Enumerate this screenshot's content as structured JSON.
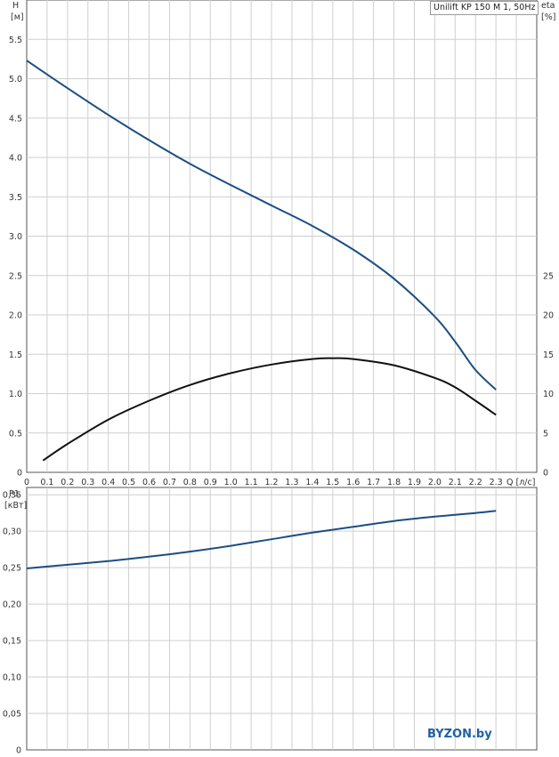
{
  "legend_text": "Unilift KP 150 M 1, 50Hz",
  "watermark_text": "BYZON.by",
  "colors": {
    "head": "#1c4e80",
    "eta": "#111111",
    "power": "#1c4e80",
    "grid": "#cfcfcf",
    "axis": "#555555"
  },
  "chart_data": [
    {
      "type": "line",
      "title": "",
      "left_axis": {
        "label_top": "H",
        "label_unit": "[м]",
        "range": [
          0,
          6.0
        ],
        "ticks": [
          "0",
          "0.5",
          "1.0",
          "1.5",
          "2.0",
          "2.5",
          "3.0",
          "3.5",
          "4.0",
          "4.5",
          "5.0",
          "5.5"
        ]
      },
      "right_axis": {
        "label_top": "eta",
        "label_unit": "[%]",
        "range": [
          0,
          60
        ],
        "ticks": [
          "0",
          "5",
          "10",
          "15",
          "20",
          "25"
        ]
      },
      "x_axis": {
        "label": "Q [л/с]",
        "range": [
          0,
          2.5
        ],
        "ticks": [
          "0",
          "0.1",
          "0.2",
          "0.3",
          "0.4",
          "0.5",
          "0.6",
          "0.7",
          "0.8",
          "0.9",
          "1.0",
          "1.1",
          "1.2",
          "1.3",
          "1.4",
          "1.5",
          "1.6",
          "1.7",
          "1.8",
          "1.9",
          "2.0",
          "2.1",
          "2.2",
          "2.3"
        ]
      },
      "grid": true,
      "series": [
        {
          "axis": "left",
          "x": [
            0,
            0.2,
            0.4,
            0.6,
            0.8,
            1.0,
            1.2,
            1.4,
            1.6,
            1.8,
            2.0,
            2.1,
            2.2,
            2.3
          ],
          "y": [
            5.23,
            4.88,
            4.54,
            4.22,
            3.92,
            3.65,
            3.39,
            3.13,
            2.83,
            2.46,
            1.98,
            1.66,
            1.3,
            1.05
          ]
        },
        {
          "axis": "right",
          "x": [
            0.08,
            0.2,
            0.4,
            0.6,
            0.8,
            1.0,
            1.2,
            1.4,
            1.5,
            1.6,
            1.8,
            2.0,
            2.1,
            2.2,
            2.3
          ],
          "y": [
            1.5,
            3.6,
            6.7,
            9.1,
            11.1,
            12.6,
            13.7,
            14.4,
            14.5,
            14.4,
            13.6,
            12.0,
            10.8,
            9.1,
            7.3
          ]
        }
      ]
    },
    {
      "type": "line",
      "title": "",
      "left_axis": {
        "label_top": "P1",
        "label_unit": "[кВт]",
        "range": [
          0,
          0.36
        ],
        "ticks": [
          "0",
          "0,05",
          "0,10",
          "0,15",
          "0,20",
          "0,25",
          "0,30",
          "0,35"
        ]
      },
      "x_axis": {
        "range": [
          0,
          2.5
        ]
      },
      "grid": true,
      "series": [
        {
          "axis": "left",
          "x": [
            0,
            0.2,
            0.4,
            0.6,
            0.8,
            1.0,
            1.2,
            1.4,
            1.6,
            1.8,
            2.0,
            2.2,
            2.3
          ],
          "y": [
            0.249,
            0.254,
            0.259,
            0.265,
            0.272,
            0.28,
            0.289,
            0.298,
            0.306,
            0.314,
            0.32,
            0.325,
            0.328
          ]
        }
      ]
    }
  ]
}
